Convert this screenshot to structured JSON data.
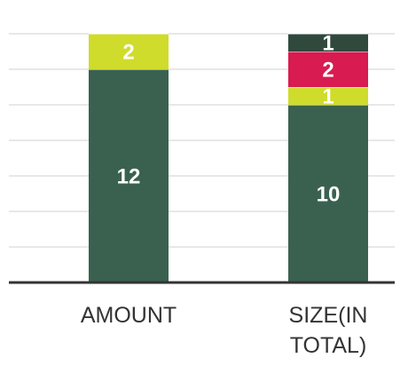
{
  "chart_data": {
    "type": "bar",
    "stacked": true,
    "categories": [
      "AMOUNT",
      "SIZE(IN TOTAL)"
    ],
    "series": [
      {
        "color": "#3a6150",
        "values": [
          12,
          10
        ]
      },
      {
        "color": "#cfdc2b",
        "values": [
          2,
          1
        ]
      },
      {
        "color": "#d81b50",
        "values": [
          null,
          2
        ]
      },
      {
        "color": "#2f4a3d",
        "values": [
          null,
          1
        ]
      }
    ],
    "ylim": [
      0,
      14
    ],
    "yticks": [
      0,
      2,
      4,
      6,
      8,
      10,
      12,
      14
    ],
    "grid": true
  }
}
